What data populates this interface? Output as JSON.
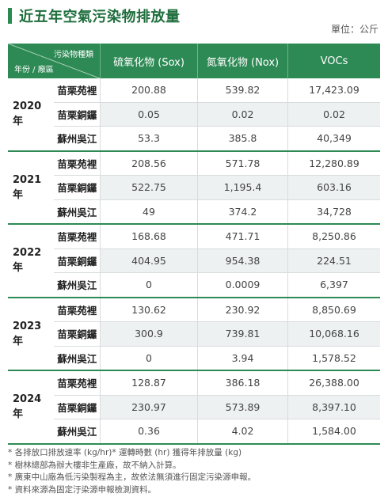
{
  "title": "近五年空氣污染物排放量",
  "unit": "單位：公斤",
  "header": {
    "corner_top": "污染物種類",
    "corner_bottom": "年份 / 廠區",
    "columns": [
      "硫氧化物 (Sox)",
      "氮氧化物 (Nox)",
      "VOCs"
    ]
  },
  "years": [
    {
      "year": "2020 年",
      "rows": [
        {
          "site": "苗栗苑裡",
          "values": [
            "200.88",
            "539.82",
            "17,423.09"
          ]
        },
        {
          "site": "苗栗銅鑼",
          "values": [
            "0.05",
            "0.02",
            "0.02"
          ]
        },
        {
          "site": "蘇州吳江",
          "values": [
            "53.3",
            "385.8",
            "40,349"
          ]
        }
      ]
    },
    {
      "year": "2021 年",
      "rows": [
        {
          "site": "苗栗苑裡",
          "values": [
            "208.56",
            "571.78",
            "12,280.89"
          ]
        },
        {
          "site": "苗栗銅鑼",
          "values": [
            "522.75",
            "1,195.4",
            "603.16"
          ]
        },
        {
          "site": "蘇州吳江",
          "values": [
            "49",
            "374.2",
            "34,728"
          ]
        }
      ]
    },
    {
      "year": "2022 年",
      "rows": [
        {
          "site": "苗栗苑裡",
          "values": [
            "168.68",
            "471.71",
            "8,250.86"
          ]
        },
        {
          "site": "苗栗銅鑼",
          "values": [
            "404.95",
            "954.38",
            "224.51"
          ]
        },
        {
          "site": "蘇州吳江",
          "values": [
            "0",
            "0.0009",
            "6,397"
          ]
        }
      ]
    },
    {
      "year": "2023 年",
      "rows": [
        {
          "site": "苗栗苑裡",
          "values": [
            "130.62",
            "230.92",
            "8,850.69"
          ]
        },
        {
          "site": "苗栗銅鑼",
          "values": [
            "300.9",
            "739.81",
            "10,068.16"
          ]
        },
        {
          "site": "蘇州吳江",
          "values": [
            "0",
            "3.94",
            "1,578.52"
          ]
        }
      ]
    },
    {
      "year": "2024 年",
      "rows": [
        {
          "site": "苗栗苑裡",
          "values": [
            "128.87",
            "386.18",
            "26,388.00"
          ]
        },
        {
          "site": "苗栗銅鑼",
          "values": [
            "230.97",
            "573.89",
            "8,397.10"
          ]
        },
        {
          "site": "蘇州吳江",
          "values": [
            "0.36",
            "4.02",
            "1,584.00"
          ]
        }
      ]
    }
  ],
  "notes": [
    "* 各排放口排放速率 (kg/hr)* 運轉時數 (hr) 獲得年排放量 (kg)",
    "* 樹林總部為辦大樓非生產廠，故不納入計算。",
    "* 廣東中山廠為低污染製程為主，故依法無須進行固定污染源申報。",
    "* 資料來源為固定汙染源申報檢測資料。"
  ],
  "colors": {
    "accent": "#2e8a55",
    "title": "#1f6e3d",
    "stripe": "#eef1f1"
  }
}
